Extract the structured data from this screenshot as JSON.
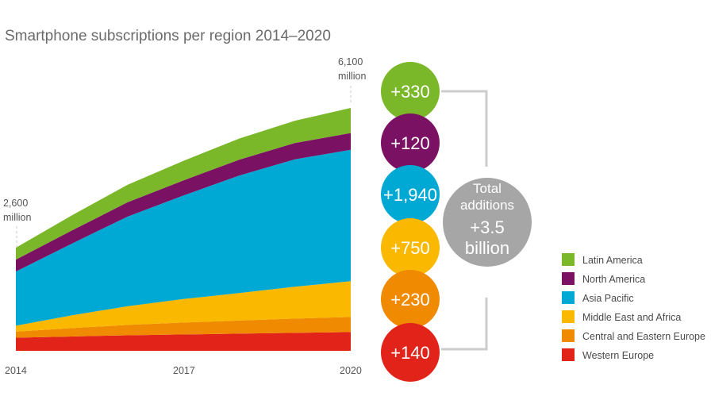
{
  "chart_data": {
    "type": "area",
    "stacked": true,
    "title": "Smartphone subscriptions per region 2014–2020",
    "x_ticks": [
      "2014",
      "2017",
      "2020"
    ],
    "x": [
      2014,
      2015,
      2016,
      2017,
      2018,
      2019,
      2020
    ],
    "unit": "million",
    "start_label": {
      "value": "2,600",
      "unit": "million"
    },
    "end_label": {
      "value": "6,100",
      "unit": "million"
    },
    "ylim": [
      0,
      6300
    ],
    "series": [
      {
        "name": "Western Europe",
        "color": "#e2231a",
        "values": [
          330,
          360,
          390,
          410,
          430,
          450,
          470
        ]
      },
      {
        "name": "Central and Eastern Europe",
        "color": "#f08a00",
        "values": [
          150,
          210,
          260,
          300,
          330,
          360,
          380
        ]
      },
      {
        "name": "Middle East and Africa",
        "color": "#fab800",
        "values": [
          150,
          320,
          470,
          590,
          690,
          800,
          900
        ]
      },
      {
        "name": "Asia Pacific",
        "color": "#00a9d4",
        "values": [
          1360,
          1800,
          2250,
          2600,
          2950,
          3200,
          3300
        ]
      },
      {
        "name": "North America",
        "color": "#7b1163",
        "values": [
          300,
          330,
          360,
          380,
          400,
          410,
          420
        ]
      },
      {
        "name": "Latin America",
        "color": "#7ab829",
        "values": [
          300,
          380,
          440,
          490,
          530,
          560,
          630
        ]
      }
    ],
    "additions": [
      {
        "label": "+330",
        "region": "Latin America",
        "color": "#7ab829"
      },
      {
        "label": "+120",
        "region": "North America",
        "color": "#7b1163"
      },
      {
        "label": "+1,940",
        "region": "Asia Pacific",
        "color": "#00a9d4"
      },
      {
        "label": "+750",
        "region": "Middle East and Africa",
        "color": "#fab800"
      },
      {
        "label": "+230",
        "region": "Central and Eastern Europe",
        "color": "#f08a00"
      },
      {
        "label": "+140",
        "region": "Western Europe",
        "color": "#e2231a"
      }
    ],
    "total": {
      "line1": "Total",
      "line2": "additions",
      "line3": "+3.5",
      "line4": "billion",
      "color": "#a6a6a6"
    },
    "legend": [
      {
        "name": "Latin America",
        "color": "#7ab829"
      },
      {
        "name": "North America",
        "color": "#7b1163"
      },
      {
        "name": "Asia Pacific",
        "color": "#00a9d4"
      },
      {
        "name": "Middle East and Africa",
        "color": "#fab800"
      },
      {
        "name": "Central and Eastern Europe",
        "color": "#f08a00"
      },
      {
        "name": "Western Europe",
        "color": "#e2231a"
      }
    ]
  }
}
